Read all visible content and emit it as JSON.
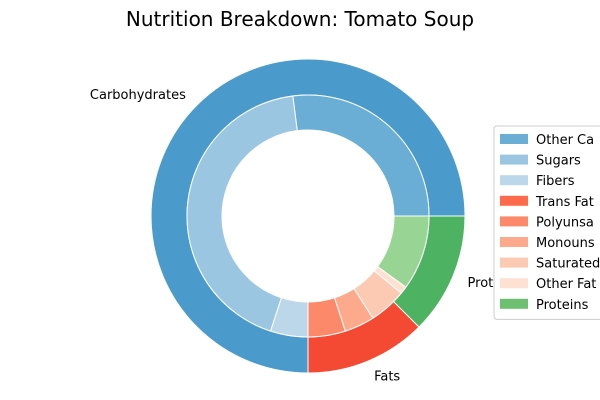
{
  "chart_data": {
    "type": "pie",
    "variant": "nested-donut",
    "title": "Nutrition Breakdown:  Tomato Soup",
    "outer_ring": {
      "categories": [
        "Carbohydrates",
        "Fats",
        "Proteins"
      ],
      "values": [
        75,
        12.5,
        12.5
      ],
      "colors": [
        "#4a9acb",
        "#f44a34",
        "#4db261"
      ],
      "labels_shown": [
        "Carbohydrates",
        "Fats",
        "Prote"
      ]
    },
    "inner_ring": {
      "categories": [
        "Other Carbohydrates",
        "Sugars",
        "Fibers",
        "Trans Fats",
        "Polyunsaturated Fats",
        "Monounsaturated Fats",
        "Saturated Fats",
        "Other Fats",
        "Proteins"
      ],
      "values": [
        27,
        43,
        5,
        0,
        5,
        4,
        5,
        1,
        10
      ],
      "colors": [
        "#6aaed6",
        "#9ac6e2",
        "#bcd7ea",
        "#fe6a4a",
        "#fc8a6a",
        "#fcaa8b",
        "#fcc9b3",
        "#fee1d3",
        "#98d594"
      ]
    },
    "legend": {
      "placement": "right",
      "entries": [
        {
          "label": "Other Ca",
          "color": "#6aaed6"
        },
        {
          "label": "Sugars",
          "color": "#9ac6e2"
        },
        {
          "label": "Fibers",
          "color": "#bcd7ea"
        },
        {
          "label": "Trans Fat",
          "color": "#fe6a4a"
        },
        {
          "label": "Polyunsa",
          "color": "#fc8a6a"
        },
        {
          "label": "Monouns",
          "color": "#fcaa8b"
        },
        {
          "label": "Saturated",
          "color": "#fcc9b3"
        },
        {
          "label": "Other Fat",
          "color": "#fee1d3"
        },
        {
          "label": "Proteins",
          "color": "#6dc06f"
        }
      ]
    }
  }
}
